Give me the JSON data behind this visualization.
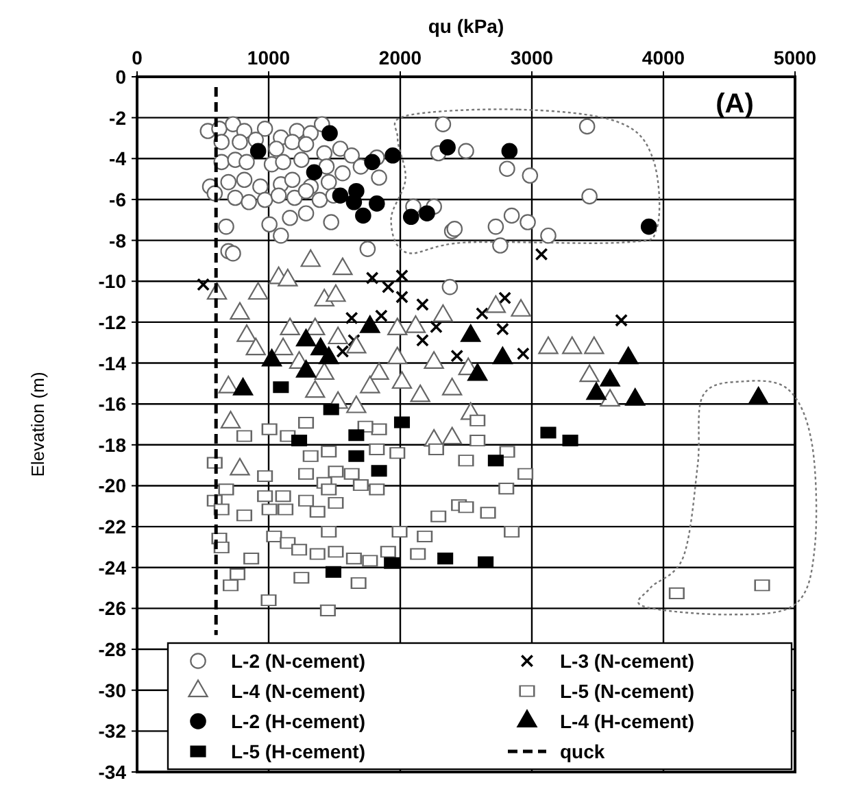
{
  "chart_data": {
    "type": "scatter",
    "xlabel": "qu (kPa)",
    "ylabel": "Elevation (m)",
    "xlim": [
      0,
      5000
    ],
    "xticks": [
      0,
      1000,
      2000,
      3000,
      4000,
      5000
    ],
    "ylim": [
      -34,
      0
    ],
    "yticks": [
      0,
      -2,
      -4,
      -6,
      -8,
      -10,
      -12,
      -14,
      -16,
      -18,
      -20,
      -22,
      -24,
      -26,
      -28,
      -30,
      -32,
      -34
    ],
    "grid": true,
    "legend": "bottom",
    "annotations": [
      "(A)"
    ],
    "series": [
      {
        "name": "L-2 (N-cement)",
        "marker": "circle",
        "color": "#666666",
        "x": [
          538,
          625,
          729,
          815,
          972,
          1093,
          1215,
          1319,
          1405,
          642,
          781,
          902,
          1058,
          1180,
          1284,
          1423,
          1544,
          1631,
          642,
          746,
          833,
          1024,
          1110,
          1249,
          1440,
          1562,
          1700,
          1822,
          1839,
          555,
          694,
          815,
          937,
          1093,
          1180,
          1319,
          1457,
          590,
          746,
          850,
          972,
          1076,
          1197,
          1284,
          1388,
          1492,
          677,
          1006,
          1162,
          1284,
          1475,
          1093,
          694,
          1752,
          2325,
          2290,
          2099,
          2256,
          2394,
          3420,
          2500,
          2812,
          2986,
          3438,
          2847,
          2726,
          2969,
          3125,
          2760,
          2413,
          729,
          2377
        ],
        "values": [
          -2.65,
          -2.54,
          -2.32,
          -2.65,
          -2.54,
          -2.97,
          -2.65,
          -2.76,
          -2.32,
          -3.19,
          -3.19,
          -3.08,
          -3.52,
          -3.19,
          -3.3,
          -3.74,
          -3.52,
          -3.85,
          -4.17,
          -4.06,
          -4.17,
          -4.28,
          -4.17,
          -4.06,
          -4.39,
          -4.72,
          -4.39,
          -3.95,
          -4.93,
          -5.37,
          -5.15,
          -5.04,
          -5.37,
          -5.26,
          -5.04,
          -5.37,
          -5.15,
          -5.7,
          -5.92,
          -6.13,
          -6.02,
          -5.81,
          -5.92,
          -5.59,
          -6.02,
          -5.81,
          -7.33,
          -7.22,
          -6.9,
          -6.68,
          -7.11,
          -7.77,
          -8.53,
          -8.42,
          -2.32,
          -3.74,
          -6.35,
          -6.35,
          -7.55,
          -2.43,
          -3.63,
          -4.5,
          -4.83,
          -5.85,
          -6.79,
          -7.33,
          -7.11,
          -7.77,
          -8.25,
          -7.44,
          -8.64,
          -10.28
        ]
      },
      {
        "name": "L-3 (N-cement)",
        "marker": "cross",
        "color": "#000000",
        "x": [
          503,
          1787,
          1908,
          2013,
          2013,
          2169,
          1631,
          1856,
          2273,
          1648,
          1562,
          2169,
          3073,
          2795,
          2622,
          3680,
          2778,
          2934,
          2431
        ],
        "values": [
          -10.16,
          -9.84,
          -10.28,
          -9.73,
          -10.77,
          -11.14,
          -11.8,
          -11.69,
          -12.23,
          -12.89,
          -13.43,
          -12.89,
          -8.68,
          -10.82,
          -11.58,
          -11.91,
          -12.34,
          -13.54,
          -13.65
        ]
      },
      {
        "name": "L-4 (N-cement)",
        "marker": "triangle",
        "color": "#666666",
        "x": [
          1319,
          1562,
          1076,
          1145,
          607,
          920,
          1423,
          1510,
          781,
          833,
          1162,
          1353,
          1978,
          2117,
          2325,
          902,
          1110,
          1527,
          1666,
          1978,
          2256,
          1232,
          1423,
          1839,
          2013,
          1770,
          1353,
          1527,
          694,
          2394,
          2152,
          711,
          1666,
          2726,
          2917,
          3125,
          3306,
          3473,
          3438,
          3594,
          2517,
          2535,
          781,
          2256,
          2394
        ],
        "values": [
          -9.0,
          -9.4,
          -9.84,
          -9.95,
          -10.6,
          -10.6,
          -10.93,
          -10.71,
          -11.58,
          -12.67,
          -12.34,
          -12.34,
          -12.34,
          -12.23,
          -11.69,
          -13.32,
          -13.32,
          -12.78,
          -13.23,
          -13.76,
          -13.98,
          -13.98,
          -14.52,
          -14.52,
          -14.96,
          -15.18,
          -15.4,
          -15.94,
          -15.18,
          -15.28,
          -15.61,
          -16.9,
          -16.15,
          -11.25,
          -11.43,
          -13.26,
          -13.26,
          -13.26,
          -14.63,
          -15.83,
          -14.29,
          -16.48,
          -19.2,
          -17.79,
          -17.68
        ]
      },
      {
        "name": "L-5 (N-cement)",
        "marker": "square",
        "color": "#666666",
        "x": [
          815,
          1006,
          1145,
          1284,
          1839,
          1735,
          2273,
          590,
          1319,
          1457,
          1822,
          1978,
          972,
          1284,
          1510,
          1631,
          1423,
          1700,
          1822,
          677,
          972,
          1110,
          1284,
          1457,
          590,
          642,
          815,
          1006,
          1128,
          1371,
          1510,
          1457,
          1041,
          1145,
          1232,
          1371,
          1510,
          1648,
          1770,
          1908,
          1995,
          2134,
          2186,
          2290,
          2446,
          625,
          642,
          868,
          763,
          711,
          1249,
          1683,
          2587,
          2587,
          2813,
          2500,
          2951,
          2806,
          2500,
          2667,
          2847,
          4101,
          4750,
          1450,
          1000
        ],
        "values": [
          -17.57,
          -17.24,
          -17.57,
          -16.92,
          -17.24,
          -17.11,
          -18.22,
          -18.88,
          -18.55,
          -18.33,
          -18.22,
          -18.4,
          -19.53,
          -19.42,
          -19.31,
          -19.42,
          -19.86,
          -19.97,
          -20.18,
          -20.18,
          -20.51,
          -20.51,
          -20.73,
          -20.18,
          -20.73,
          -21.16,
          -21.45,
          -21.16,
          -21.16,
          -21.27,
          -20.84,
          -22.25,
          -22.48,
          -22.8,
          -23.13,
          -23.34,
          -23.23,
          -23.56,
          -23.67,
          -23.23,
          -22.25,
          -23.34,
          -22.48,
          -21.5,
          -20.95,
          -22.58,
          -23.02,
          -23.56,
          -24.33,
          -24.87,
          -24.5,
          -24.76,
          -16.81,
          -17.79,
          -18.34,
          -18.77,
          -19.42,
          -20.14,
          -21.05,
          -21.32,
          -22.25,
          -25.26,
          -24.87,
          -26.1,
          -25.6
        ]
      },
      {
        "name": "L-2 (H-cement)",
        "marker": "circle",
        "color": "#000000",
        "x": [
          920,
          1464,
          1346,
          1787,
          1943,
          1544,
          1666,
          1648,
          1822,
          1718,
          2082,
          2203,
          2360,
          2830,
          3889
        ],
        "values": [
          -3.63,
          -2.76,
          -4.67,
          -4.17,
          -3.85,
          -5.81,
          -5.59,
          -6.13,
          -6.2,
          -6.79,
          -6.85,
          -6.68,
          -3.45,
          -3.63,
          -7.33
        ]
      },
      {
        "name": "L-4 (H-cement)",
        "marker": "triangle",
        "color": "#000000",
        "x": [
          1770,
          1284,
          1395,
          1457,
          1024,
          1284,
          805,
          2535,
          2778,
          2587,
          3733,
          3594,
          3490,
          3785,
          4722
        ],
        "values": [
          -12.23,
          -12.89,
          -13.32,
          -13.76,
          -13.87,
          -14.41,
          -15.28,
          -12.67,
          -13.76,
          -14.57,
          -13.76,
          -14.85,
          -15.5,
          -15.79,
          -15.72
        ]
      },
      {
        "name": "L-5 (H-cement)",
        "marker": "square",
        "color": "#000000",
        "x": [
          1093,
          1475,
          2013,
          1232,
          1666,
          1666,
          1839,
          1936,
          2342,
          1492,
          3125,
          3292,
          2726,
          2649
        ],
        "values": [
          -15.18,
          -16.26,
          -16.9,
          -17.79,
          -17.53,
          -18.55,
          -19.27,
          -23.78,
          -23.56,
          -24.22,
          -17.4,
          -17.79,
          -18.77,
          -23.74
        ]
      },
      {
        "name": "quck",
        "type": "line",
        "marker": "none",
        "line_style": "dashed",
        "color": "#000000",
        "x": [
          600,
          600
        ],
        "values": [
          -0.5,
          -27.3
        ]
      }
    ]
  }
}
